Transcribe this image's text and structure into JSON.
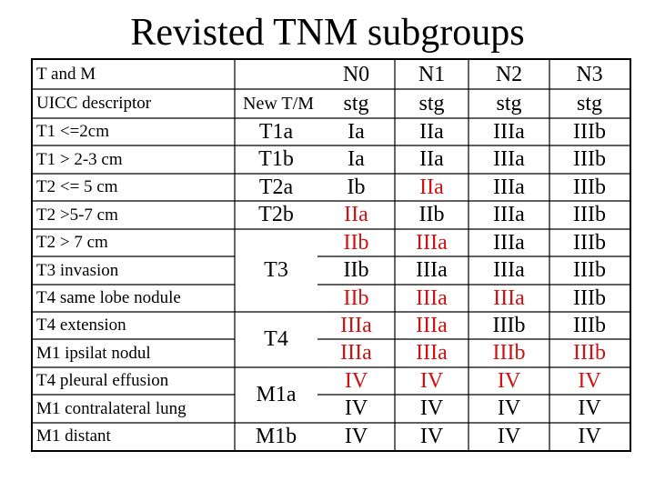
{
  "title": "Revisted TNM subgroups",
  "header": {
    "row1": {
      "label": "T and M",
      "n0": "N0",
      "n1": "N1",
      "n2": "N2",
      "n3": "N3"
    },
    "row2": {
      "label": "UICC descriptor",
      "new_tm": "New T/M",
      "n0": "stg",
      "n1": "stg",
      "n2": "stg",
      "n3": "stg"
    }
  },
  "rows": [
    {
      "label": "T1 <=2cm",
      "stages": [
        "Ia",
        "IIa",
        "IIIa",
        "IIIb"
      ],
      "red": [
        false,
        false,
        false,
        false
      ]
    },
    {
      "label": "T1 > 2-3 cm",
      "stages": [
        "Ia",
        "IIa",
        "IIIa",
        "IIIb"
      ],
      "red": [
        false,
        false,
        false,
        false
      ]
    },
    {
      "label": "T2 <= 5 cm",
      "stages": [
        "Ib",
        "IIa",
        "IIIa",
        "IIIb"
      ],
      "red": [
        false,
        true,
        false,
        false
      ]
    },
    {
      "label": "T2 >5-7 cm",
      "stages": [
        "IIa",
        "IIb",
        "IIIa",
        "IIIb"
      ],
      "red": [
        true,
        false,
        false,
        false
      ]
    },
    {
      "label": "T2 > 7 cm",
      "stages": [
        "IIb",
        "IIIa",
        "IIIa",
        "IIIb"
      ],
      "red": [
        true,
        true,
        false,
        false
      ]
    },
    {
      "label": "T3 invasion",
      "stages": [
        "IIb",
        "IIIa",
        "IIIa",
        "IIIb"
      ],
      "red": [
        false,
        false,
        false,
        false
      ]
    },
    {
      "label": "T4 same lobe nodule",
      "stages": [
        "IIb",
        "IIIa",
        "IIIa",
        "IIIb"
      ],
      "red": [
        true,
        true,
        true,
        false
      ]
    },
    {
      "label": "T4 extension",
      "stages": [
        "IIIa",
        "IIIa",
        "IIIb",
        "IIIb"
      ],
      "red": [
        true,
        true,
        false,
        false
      ]
    },
    {
      "label": "M1 ipsilat nodul",
      "stages": [
        "IIIa",
        "IIIa",
        "IIIb",
        "IIIb"
      ],
      "red": [
        true,
        true,
        true,
        true
      ]
    },
    {
      "label": "T4 pleural effusion",
      "stages": [
        "IV",
        "IV",
        "IV",
        "IV"
      ],
      "red": [
        true,
        true,
        true,
        true
      ]
    },
    {
      "label": "M1 contralateral lung",
      "stages": [
        "IV",
        "IV",
        "IV",
        "IV"
      ],
      "red": [
        false,
        false,
        false,
        false
      ]
    },
    {
      "label": "M1 distant",
      "stages": [
        "IV",
        "IV",
        "IV",
        "IV"
      ],
      "red": [
        false,
        false,
        false,
        false
      ]
    }
  ],
  "new_tm_groups": [
    {
      "text": "T1a"
    },
    {
      "text": "T1b"
    },
    {
      "text": "T2a"
    },
    {
      "text": "T2b"
    },
    {
      "text": "T3"
    },
    {
      "text": "T4"
    },
    {
      "text": "M1a"
    },
    {
      "text": "M1b"
    }
  ],
  "colors": {
    "red": "#d11111",
    "black": "#000000"
  }
}
